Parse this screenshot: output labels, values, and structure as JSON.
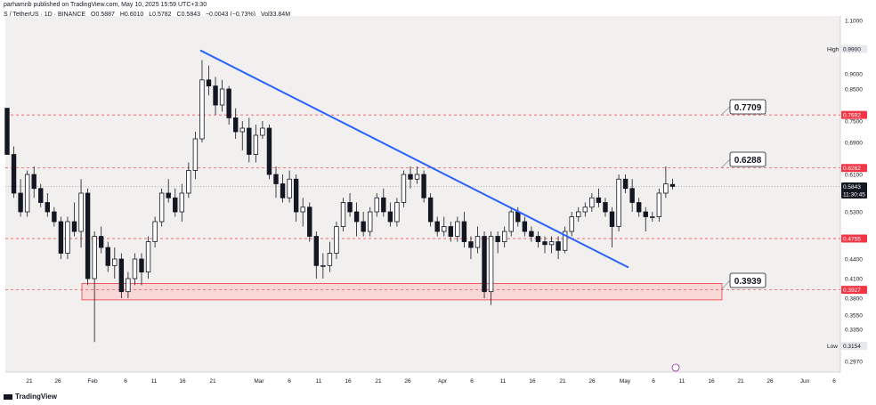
{
  "header": {
    "publisher": "parhamnb published on TradingView.com, May 10, 2025 15:59 UTC+3:30",
    "symbol": "S / TetherUS · 1D · BINANCE",
    "open": "O0.5887",
    "high": "H0.6010",
    "low": "L0.5782",
    "close": "C0.5843",
    "change": "−0.0043 (−0.73%)",
    "volume": "Vol33.84M"
  },
  "footer": {
    "brand": "TradingView"
  },
  "colors": {
    "up": "#131722",
    "down": "#131722",
    "trend": "#2962ff",
    "level": "#f23645",
    "zone_fill": "#f7d8d6"
  },
  "chart_data": {
    "type": "candlestick",
    "x_ticks": [
      "21",
      "26",
      "Feb",
      "6",
      "11",
      "16",
      "21",
      "Mar",
      "6",
      "11",
      "16",
      "21",
      "26",
      "Apr",
      "6",
      "11",
      "16",
      "21",
      "26",
      "May",
      "6",
      "11",
      "16",
      "21",
      "26",
      "Jun",
      "6"
    ],
    "y_ticks": [
      "1.1000",
      "0.9900",
      "0.9000",
      "0.8500",
      "0.7500",
      "0.6900",
      "0.6100",
      "0.5300",
      "0.4755",
      "0.4400",
      "0.4100",
      "0.3800",
      "0.3550",
      "0.3350",
      "0.2970"
    ],
    "price_labels": [
      {
        "text": "High",
        "value": "0.9900"
      },
      {
        "text": "",
        "value": "0.7692"
      },
      {
        "text": "",
        "value": "0.6262"
      },
      {
        "text": "",
        "value": "0.5843",
        "sub": "11:30:45"
      },
      {
        "text": "",
        "value": "0.4755"
      },
      {
        "text": "",
        "value": "0.3927"
      },
      {
        "text": "Low",
        "value": "0.3154"
      }
    ],
    "levels": [
      0.7692,
      0.6262,
      0.4755,
      0.3927
    ],
    "callouts": [
      "0.7709",
      "0.6288",
      "0.3939"
    ],
    "zone": [
      0.3775,
      0.4025
    ],
    "trendline": {
      "from": {
        "date": "2025-02-19",
        "price": 0.985
      },
      "to": {
        "date": "2025-05-02",
        "price": 0.427
      }
    },
    "last_price": 0.5843,
    "candles": [
      [
        0.79,
        0.79,
        0.66,
        0.66
      ],
      [
        0.66,
        0.68,
        0.56,
        0.57
      ],
      [
        0.57,
        0.6,
        0.52,
        0.53
      ],
      [
        0.53,
        0.62,
        0.52,
        0.61
      ],
      [
        0.61,
        0.63,
        0.56,
        0.58
      ],
      [
        0.58,
        0.59,
        0.54,
        0.55
      ],
      [
        0.55,
        0.57,
        0.52,
        0.53
      ],
      [
        0.53,
        0.54,
        0.5,
        0.51
      ],
      [
        0.51,
        0.52,
        0.44,
        0.45
      ],
      [
        0.45,
        0.52,
        0.44,
        0.51
      ],
      [
        0.51,
        0.55,
        0.48,
        0.49
      ],
      [
        0.49,
        0.6,
        0.46,
        0.57
      ],
      [
        0.57,
        0.58,
        0.4,
        0.41
      ],
      [
        0.41,
        0.49,
        0.32,
        0.48
      ],
      [
        0.48,
        0.5,
        0.45,
        0.46
      ],
      [
        0.46,
        0.47,
        0.42,
        0.43
      ],
      [
        0.43,
        0.46,
        0.41,
        0.44
      ],
      [
        0.44,
        0.45,
        0.38,
        0.39
      ],
      [
        0.39,
        0.42,
        0.38,
        0.41
      ],
      [
        0.41,
        0.45,
        0.4,
        0.44
      ],
      [
        0.44,
        0.45,
        0.4,
        0.42
      ],
      [
        0.42,
        0.48,
        0.41,
        0.47
      ],
      [
        0.47,
        0.52,
        0.46,
        0.51
      ],
      [
        0.51,
        0.58,
        0.5,
        0.57
      ],
      [
        0.57,
        0.6,
        0.55,
        0.56
      ],
      [
        0.56,
        0.58,
        0.52,
        0.53
      ],
      [
        0.53,
        0.59,
        0.51,
        0.57
      ],
      [
        0.57,
        0.64,
        0.56,
        0.62
      ],
      [
        0.62,
        0.72,
        0.6,
        0.7
      ],
      [
        0.7,
        0.95,
        0.69,
        0.88
      ],
      [
        0.88,
        0.93,
        0.83,
        0.86
      ],
      [
        0.86,
        0.89,
        0.77,
        0.8
      ],
      [
        0.8,
        0.88,
        0.78,
        0.85
      ],
      [
        0.85,
        0.86,
        0.74,
        0.76
      ],
      [
        0.76,
        0.79,
        0.7,
        0.72
      ],
      [
        0.72,
        0.75,
        0.67,
        0.73
      ],
      [
        0.73,
        0.76,
        0.64,
        0.66
      ],
      [
        0.66,
        0.74,
        0.64,
        0.71
      ],
      [
        0.71,
        0.75,
        0.7,
        0.73
      ],
      [
        0.73,
        0.74,
        0.6,
        0.61
      ],
      [
        0.61,
        0.63,
        0.56,
        0.59
      ],
      [
        0.59,
        0.61,
        0.55,
        0.56
      ],
      [
        0.56,
        0.62,
        0.55,
        0.6
      ],
      [
        0.6,
        0.61,
        0.51,
        0.53
      ],
      [
        0.53,
        0.56,
        0.5,
        0.54
      ],
      [
        0.54,
        0.55,
        0.47,
        0.48
      ],
      [
        0.48,
        0.49,
        0.41,
        0.43
      ],
      [
        0.43,
        0.45,
        0.41,
        0.43
      ],
      [
        0.43,
        0.47,
        0.42,
        0.45
      ],
      [
        0.45,
        0.51,
        0.44,
        0.5
      ],
      [
        0.5,
        0.56,
        0.49,
        0.55
      ],
      [
        0.55,
        0.57,
        0.52,
        0.53
      ],
      [
        0.53,
        0.55,
        0.48,
        0.51
      ],
      [
        0.51,
        0.53,
        0.48,
        0.49
      ],
      [
        0.49,
        0.54,
        0.48,
        0.53
      ],
      [
        0.53,
        0.57,
        0.52,
        0.56
      ],
      [
        0.56,
        0.58,
        0.52,
        0.53
      ],
      [
        0.53,
        0.55,
        0.5,
        0.51
      ],
      [
        0.51,
        0.56,
        0.5,
        0.55
      ],
      [
        0.55,
        0.62,
        0.54,
        0.61
      ],
      [
        0.61,
        0.63,
        0.58,
        0.6
      ],
      [
        0.6,
        0.63,
        0.59,
        0.61
      ],
      [
        0.61,
        0.62,
        0.55,
        0.56
      ],
      [
        0.56,
        0.57,
        0.5,
        0.51
      ],
      [
        0.51,
        0.52,
        0.48,
        0.49
      ],
      [
        0.49,
        0.52,
        0.48,
        0.5
      ],
      [
        0.5,
        0.51,
        0.47,
        0.48
      ],
      [
        0.48,
        0.52,
        0.47,
        0.51
      ],
      [
        0.51,
        0.53,
        0.46,
        0.47
      ],
      [
        0.47,
        0.48,
        0.44,
        0.46
      ],
      [
        0.46,
        0.5,
        0.45,
        0.48
      ],
      [
        0.48,
        0.49,
        0.38,
        0.39
      ],
      [
        0.39,
        0.49,
        0.37,
        0.48
      ],
      [
        0.48,
        0.49,
        0.45,
        0.47
      ],
      [
        0.47,
        0.5,
        0.46,
        0.49
      ],
      [
        0.49,
        0.54,
        0.48,
        0.53
      ],
      [
        0.53,
        0.54,
        0.5,
        0.51
      ],
      [
        0.51,
        0.52,
        0.48,
        0.49
      ],
      [
        0.49,
        0.5,
        0.47,
        0.48
      ],
      [
        0.48,
        0.49,
        0.46,
        0.47
      ],
      [
        0.47,
        0.48,
        0.45,
        0.465
      ],
      [
        0.465,
        0.48,
        0.45,
        0.47
      ],
      [
        0.47,
        0.48,
        0.44,
        0.455
      ],
      [
        0.455,
        0.5,
        0.45,
        0.49
      ],
      [
        0.49,
        0.53,
        0.48,
        0.52
      ],
      [
        0.52,
        0.54,
        0.51,
        0.53
      ],
      [
        0.53,
        0.55,
        0.52,
        0.54
      ],
      [
        0.54,
        0.57,
        0.53,
        0.56
      ],
      [
        0.56,
        0.58,
        0.54,
        0.55
      ],
      [
        0.55,
        0.56,
        0.52,
        0.53
      ],
      [
        0.53,
        0.54,
        0.46,
        0.5
      ],
      [
        0.5,
        0.61,
        0.49,
        0.6
      ],
      [
        0.6,
        0.61,
        0.57,
        0.58
      ],
      [
        0.58,
        0.6,
        0.53,
        0.55
      ],
      [
        0.55,
        0.56,
        0.52,
        0.53
      ],
      [
        0.53,
        0.54,
        0.49,
        0.52
      ],
      [
        0.52,
        0.53,
        0.51,
        0.52
      ],
      [
        0.52,
        0.58,
        0.51,
        0.57
      ],
      [
        0.57,
        0.63,
        0.56,
        0.59
      ],
      [
        0.5887,
        0.601,
        0.5782,
        0.5843
      ]
    ]
  }
}
